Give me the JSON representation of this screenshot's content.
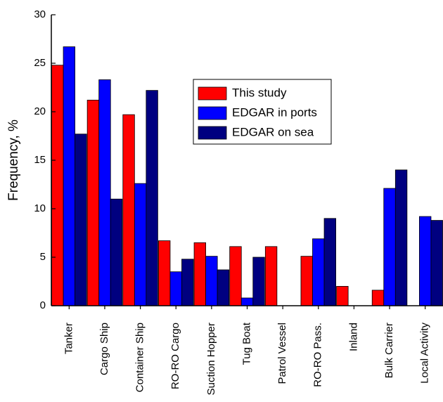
{
  "chart_data": {
    "type": "bar",
    "y_label": "Frequency, %",
    "categories": [
      "Tanker",
      "Cargo Ship",
      "Container Ship",
      "RO-RO Cargo",
      "Suction Hopper",
      "Tug Boat",
      "Patrol Vessel",
      "RO-RO Pass.",
      "Inland",
      "Bulk Carrier",
      "Local Activity"
    ],
    "series": [
      {
        "name": "This study",
        "color": "#ff0000",
        "values": [
          24.8,
          21.2,
          19.7,
          6.7,
          6.5,
          6.1,
          6.1,
          5.1,
          2.0,
          1.6,
          0
        ]
      },
      {
        "name": "EDGAR in ports",
        "color": "#0000ff",
        "values": [
          26.7,
          23.3,
          12.6,
          3.5,
          5.1,
          0.8,
          0,
          6.9,
          0,
          12.1,
          9.2
        ]
      },
      {
        "name": "EDGAR on sea",
        "color": "#000080",
        "values": [
          17.7,
          11.0,
          22.2,
          4.8,
          3.7,
          5.0,
          0,
          9.0,
          0,
          14.0,
          8.8
        ]
      }
    ],
    "ylim": [
      0,
      30
    ],
    "yticks": [
      0,
      5,
      10,
      15,
      20,
      25,
      30
    ],
    "grid": false,
    "legend_position": "upper center"
  }
}
